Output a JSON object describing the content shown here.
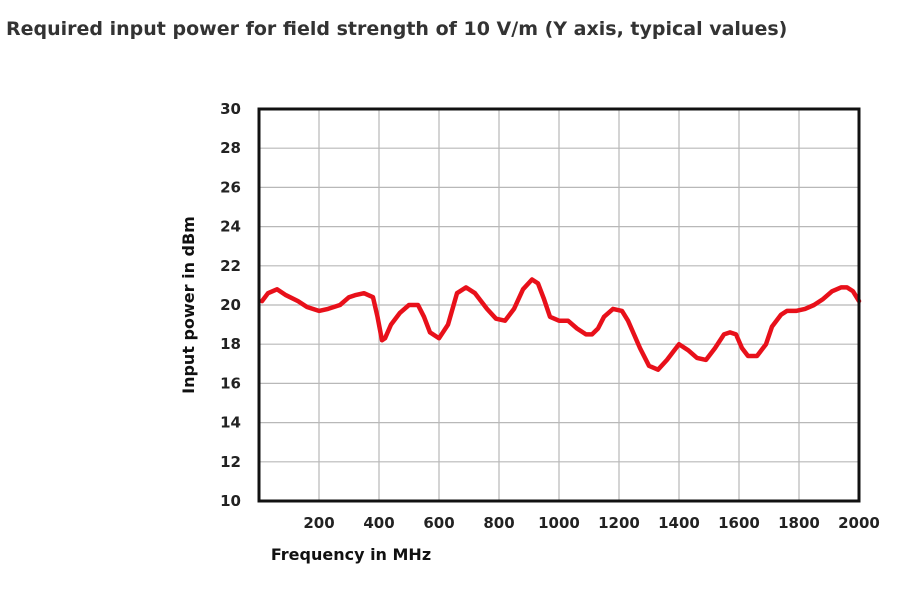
{
  "title": "Required input power for field strength of 10 V/m (Y axis, typical values)",
  "chart_data": {
    "type": "line",
    "xlabel": "Frequency in MHz",
    "ylabel": "Input power in dBm",
    "xlim": [
      0,
      2000
    ],
    "ylim": [
      10,
      30
    ],
    "xticks": [
      200,
      400,
      600,
      800,
      1000,
      1200,
      1400,
      1600,
      1800,
      2000
    ],
    "yticks": [
      10,
      12,
      14,
      16,
      18,
      20,
      22,
      24,
      26,
      28,
      30
    ],
    "grid": true,
    "series_color": "#e8101a",
    "x": [
      10,
      30,
      60,
      90,
      130,
      160,
      200,
      230,
      270,
      300,
      320,
      350,
      380,
      395,
      410,
      420,
      440,
      470,
      500,
      530,
      550,
      570,
      600,
      630,
      660,
      690,
      720,
      760,
      790,
      820,
      850,
      880,
      910,
      930,
      950,
      970,
      1000,
      1030,
      1060,
      1090,
      1110,
      1130,
      1150,
      1180,
      1210,
      1230,
      1250,
      1270,
      1300,
      1330,
      1360,
      1380,
      1400,
      1430,
      1460,
      1490,
      1520,
      1550,
      1570,
      1590,
      1610,
      1630,
      1660,
      1690,
      1710,
      1740,
      1760,
      1790,
      1820,
      1850,
      1880,
      1910,
      1940,
      1960,
      1980,
      2000
    ],
    "y": [
      20.2,
      20.6,
      20.8,
      20.5,
      20.2,
      19.9,
      19.7,
      19.8,
      20.0,
      20.4,
      20.5,
      20.6,
      20.4,
      19.4,
      18.2,
      18.3,
      19.0,
      19.6,
      20.0,
      20.0,
      19.4,
      18.6,
      18.3,
      19.0,
      20.6,
      20.9,
      20.6,
      19.8,
      19.3,
      19.2,
      19.8,
      20.8,
      21.3,
      21.1,
      20.3,
      19.4,
      19.2,
      19.2,
      18.8,
      18.5,
      18.5,
      18.8,
      19.4,
      19.8,
      19.7,
      19.2,
      18.5,
      17.8,
      16.9,
      16.7,
      17.2,
      17.6,
      18.0,
      17.7,
      17.3,
      17.2,
      17.8,
      18.5,
      18.6,
      18.5,
      17.8,
      17.4,
      17.4,
      18.0,
      18.9,
      19.5,
      19.7,
      19.7,
      19.8,
      20.0,
      20.3,
      20.7,
      20.9,
      20.9,
      20.7,
      20.2
    ]
  }
}
